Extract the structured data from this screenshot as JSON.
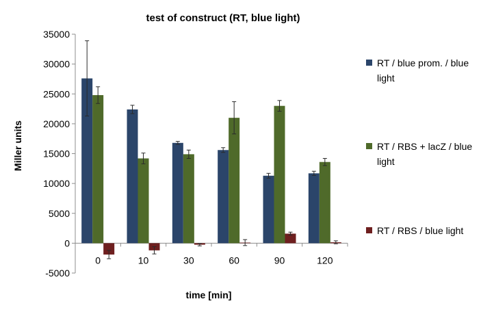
{
  "chart_data": {
    "type": "bar",
    "title": "test of construct (RT, blue light)",
    "xlabel": "time [min]",
    "ylabel": "Miller units",
    "categories": [
      "0",
      "10",
      "30",
      "60",
      "90",
      "120"
    ],
    "ylim": [
      -5000,
      35000
    ],
    "yticks": [
      35000,
      30000,
      25000,
      20000,
      15000,
      10000,
      5000,
      0,
      -5000
    ],
    "grid": false,
    "legend_position": "right",
    "series": [
      {
        "name": "RT / blue prom. / blue light",
        "legend_lines": [
          "RT / blue prom. / blue",
          "light"
        ],
        "color": "#2B456A",
        "values": [
          27600,
          22400,
          16800,
          15600,
          11300,
          11700
        ],
        "errors": [
          6300,
          700,
          250,
          400,
          400,
          350
        ]
      },
      {
        "name": "RT / RBS + lacZ / blue light",
        "legend_lines": [
          "RT / RBS + lacZ / blue",
          "light"
        ],
        "color": "#4F6A2A",
        "values": [
          24800,
          14200,
          14900,
          21000,
          23000,
          13600
        ],
        "errors": [
          1400,
          900,
          700,
          2700,
          900,
          600
        ]
      },
      {
        "name": "RT / RBS / blue light",
        "legend_lines": [
          "RT / RBS / blue light"
        ],
        "color": "#6E1F1F",
        "values": [
          -1900,
          -1200,
          -250,
          100,
          1600,
          150
        ],
        "errors": [
          700,
          600,
          200,
          500,
          250,
          250
        ]
      }
    ]
  }
}
